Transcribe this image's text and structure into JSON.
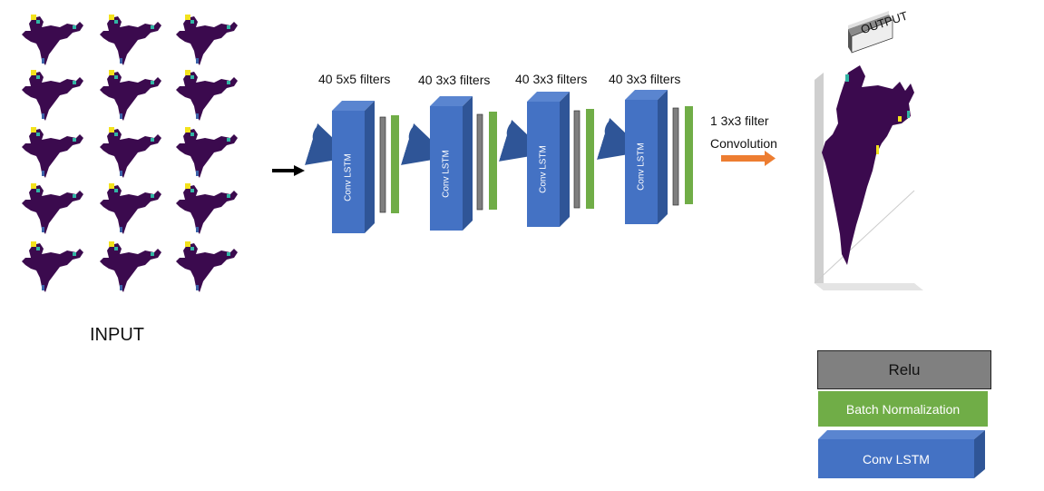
{
  "input": {
    "label": "INPUT",
    "map_colors": {
      "base": "#3b0a4e",
      "bright": "#f3e21d",
      "mid": "#31b6a4",
      "blue": "#3b62a8"
    }
  },
  "layers": [
    {
      "filters_label": "40 5x5 filters",
      "block_label": "Conv  LSTM"
    },
    {
      "filters_label": "40 3x3 filters",
      "block_label": "Conv  LSTM"
    },
    {
      "filters_label": "40 3x3 filters",
      "block_label": "Conv  LSTM"
    },
    {
      "filters_label": "40 3x3 filters",
      "block_label": "Conv  LSTM"
    }
  ],
  "final_conv": {
    "line1": "1 3x3 filter",
    "line2": "Convolution"
  },
  "output": {
    "label": "OUTPUT"
  },
  "legend": {
    "relu": "Relu",
    "batch_norm": "Batch Normalization",
    "conv_lstm": "Conv LSTM"
  },
  "colors": {
    "conv_front": "#4472c4",
    "conv_side": "#2f5597",
    "conv_top": "#5a85d0",
    "batchnorm": "#70ad47",
    "relu": "#7f7f7f",
    "relu_legend": "#808080",
    "arrow_orange": "#ed7d31",
    "map": "#3b0a4e"
  }
}
